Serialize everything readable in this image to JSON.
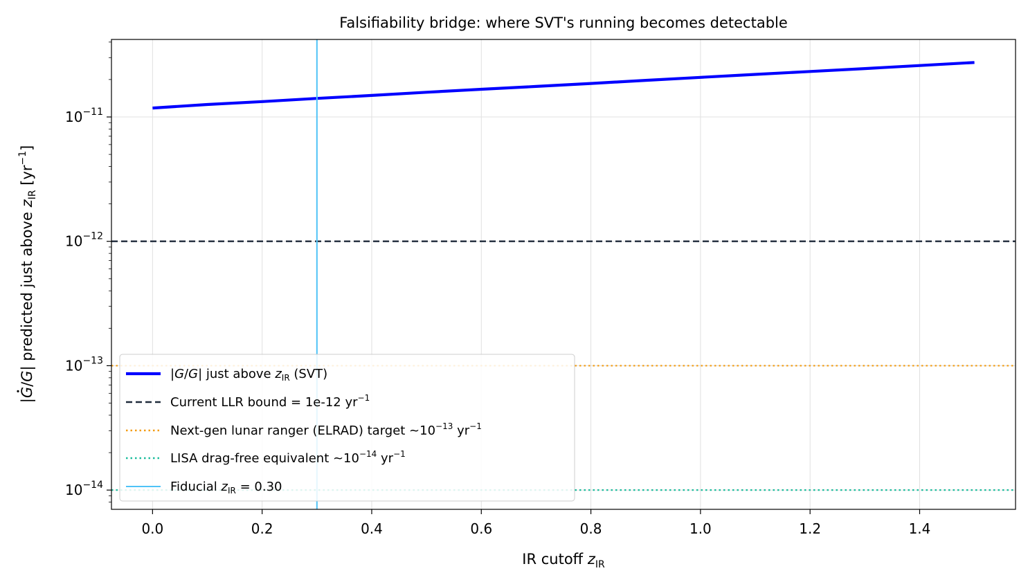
{
  "chart_data": {
    "type": "line",
    "title": "Falsifiability bridge: where SVT's running becomes detectable",
    "xlabel_main": "IR cutoff ",
    "xlabel_var": "z",
    "xlabel_sub": "IR",
    "ylabel": {
      "prefix": "|",
      "var_num": "G",
      "slash": "/",
      "var_den": "G",
      "mid": "| predicted just above ",
      "var_z": "z",
      "sub": "IR",
      "bracket": " [yr",
      "exp": "−1",
      "close": "]"
    },
    "x_scale": "linear",
    "y_scale": "log",
    "xlim": [
      -0.075,
      1.575
    ],
    "ylim": [
      7e-15,
      4.2e-11
    ],
    "x_ticks": [
      0.0,
      0.2,
      0.4,
      0.6,
      0.8,
      1.0,
      1.2,
      1.4
    ],
    "x_tick_labels": [
      "0.0",
      "0.2",
      "0.4",
      "0.6",
      "0.8",
      "1.0",
      "1.2",
      "1.4"
    ],
    "y_ticks": [
      1e-14,
      1e-13,
      1e-12,
      1e-11
    ],
    "y_tick_labels": [
      {
        "base": "10",
        "exp": "−14"
      },
      {
        "base": "10",
        "exp": "−13"
      },
      {
        "base": "10",
        "exp": "−12"
      },
      {
        "base": "10",
        "exp": "−11"
      }
    ],
    "grid": true,
    "legend_position": "lower-left",
    "series": [
      {
        "kind": "curve",
        "color": "#0000ff",
        "style": "solid",
        "x": [
          0.0,
          0.1,
          0.2,
          0.3,
          0.4,
          0.5,
          0.6,
          0.7,
          0.8,
          0.9,
          1.0,
          1.1,
          1.2,
          1.3,
          1.4,
          1.5
        ],
        "y": [
          1.18e-11,
          1.26e-11,
          1.33e-11,
          1.41e-11,
          1.49e-11,
          1.58e-11,
          1.67e-11,
          1.76e-11,
          1.86e-11,
          1.97e-11,
          2.08e-11,
          2.2e-11,
          2.32e-11,
          2.45e-11,
          2.59e-11,
          2.74e-11
        ],
        "legend": {
          "pre": "|",
          "var1": "G",
          "slash": "/",
          "var2": "G",
          "mid": "| just above ",
          "var_z": "z",
          "sub": "IR",
          "post": " (SVT)"
        }
      },
      {
        "kind": "hline",
        "color": "#1f2a3a",
        "style": "dashed",
        "y": 1e-12,
        "legend": {
          "pre": "Current LLR bound = 1e-12 yr",
          "sup": "−1",
          "post": ""
        }
      },
      {
        "kind": "hline",
        "color": "#f39c12",
        "style": "dotted",
        "y": 1e-13,
        "legend": {
          "pre": "Next-gen lunar ranger (ELRAD) target  ~10",
          "sup": "−13",
          "post": " yr",
          "sup2": "−1"
        }
      },
      {
        "kind": "hline",
        "color": "#1abc9c",
        "style": "dotted",
        "y": 1e-14,
        "legend": {
          "pre": "LISA drag-free equivalent  ~10",
          "sup": "−14",
          "post": " yr",
          "sup2": "−1"
        }
      },
      {
        "kind": "vline",
        "color": "#4fc3f7",
        "style": "solid",
        "x": 0.3,
        "legend": {
          "pre": "Fiducial ",
          "var_z": "z",
          "sub": "IR",
          "post": " = 0.30"
        }
      }
    ]
  }
}
